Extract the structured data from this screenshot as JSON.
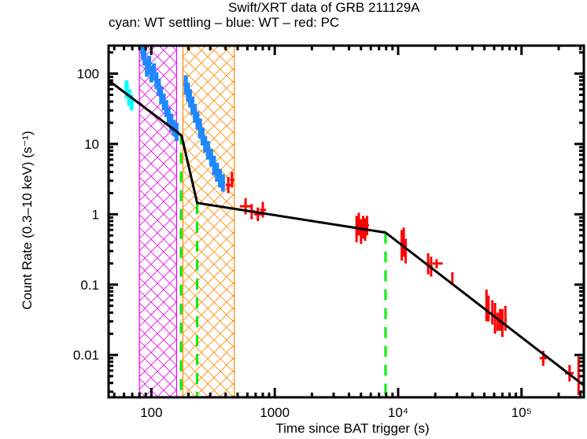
{
  "chart_data": {
    "type": "scatter",
    "title": "Swift/XRT data of GRB 211129A",
    "subtitle": "cyan: WT settling – blue: WT – red: PC",
    "xlabel": "Time since BAT trigger (s)",
    "ylabel": "Count Rate (0.3–10 keV) (s⁻¹)",
    "xscale": "log",
    "yscale": "log",
    "xlim": [
      45,
      320000
    ],
    "ylim": [
      0.0025,
      250
    ],
    "grid": false,
    "legend": "none",
    "x_ticks": [
      {
        "value": 100,
        "label": "100"
      },
      {
        "value": 1000,
        "label": "1000"
      },
      {
        "value": 10000,
        "label": "10⁴"
      },
      {
        "value": 100000,
        "label": "10⁵"
      }
    ],
    "y_ticks": [
      {
        "value": 100,
        "label": "100"
      },
      {
        "value": 10,
        "label": "10"
      },
      {
        "value": 1,
        "label": "1"
      },
      {
        "value": 0.1,
        "label": "0.1"
      },
      {
        "value": 0.01,
        "label": "0.01"
      }
    ],
    "colors": {
      "wt_settling": "#00ffff",
      "wt": "#1e88ff",
      "pc": "#ff0000",
      "model": "#000000",
      "break": "#00ee00",
      "flare1": "#ee00ee",
      "flare2": "#ff8800"
    },
    "shaded_regions": [
      {
        "name": "flare-1",
        "x_start": 80,
        "x_end": 160,
        "color": "#ee00ee",
        "pattern": "crosshatch"
      },
      {
        "name": "flare-2",
        "x_start": 180,
        "x_end": 470,
        "color": "#ff8800",
        "pattern": "crosshatch"
      }
    ],
    "break_lines": [
      {
        "x": 174,
        "y_top": 14
      },
      {
        "x": 235,
        "y_top": 1.45
      },
      {
        "x": 7900,
        "y_top": 0.55
      }
    ],
    "model_curve": {
      "x": [
        45,
        160,
        176,
        235,
        7900,
        320000
      ],
      "y": [
        80,
        15,
        13,
        1.45,
        0.55,
        0.0037
      ]
    },
    "series": [
      {
        "name": "WT settling",
        "color": "#00ffff",
        "points": [
          {
            "x": 63,
            "y": 65,
            "ylo": 45,
            "yhi": 80
          },
          {
            "x": 66,
            "y": 48,
            "ylo": 35,
            "yhi": 60
          },
          {
            "x": 69,
            "y": 40,
            "ylo": 30,
            "yhi": 50
          }
        ]
      },
      {
        "name": "WT",
        "color": "#1e88ff",
        "points": [
          {
            "x": 85,
            "y": 200,
            "ylo": 160,
            "yhi": 250
          },
          {
            "x": 88,
            "y": 170,
            "ylo": 130,
            "yhi": 220
          },
          {
            "x": 92,
            "y": 120,
            "ylo": 90,
            "yhi": 160
          },
          {
            "x": 96,
            "y": 140,
            "ylo": 100,
            "yhi": 180
          },
          {
            "x": 100,
            "y": 100,
            "ylo": 75,
            "yhi": 130
          },
          {
            "x": 105,
            "y": 110,
            "ylo": 80,
            "yhi": 140
          },
          {
            "x": 110,
            "y": 80,
            "ylo": 60,
            "yhi": 105
          },
          {
            "x": 115,
            "y": 65,
            "ylo": 48,
            "yhi": 85
          },
          {
            "x": 120,
            "y": 50,
            "ylo": 37,
            "yhi": 65
          },
          {
            "x": 126,
            "y": 40,
            "ylo": 30,
            "yhi": 52
          },
          {
            "x": 132,
            "y": 32,
            "ylo": 24,
            "yhi": 42
          },
          {
            "x": 138,
            "y": 25,
            "ylo": 18,
            "yhi": 33
          },
          {
            "x": 145,
            "y": 20,
            "ylo": 15,
            "yhi": 27
          },
          {
            "x": 152,
            "y": 17,
            "ylo": 13,
            "yhi": 22
          },
          {
            "x": 160,
            "y": 15,
            "ylo": 11,
            "yhi": 20
          },
          {
            "x": 190,
            "y": 70,
            "ylo": 50,
            "yhi": 95
          },
          {
            "x": 198,
            "y": 55,
            "ylo": 40,
            "yhi": 75
          },
          {
            "x": 206,
            "y": 45,
            "ylo": 33,
            "yhi": 60
          },
          {
            "x": 215,
            "y": 35,
            "ylo": 26,
            "yhi": 47
          },
          {
            "x": 225,
            "y": 28,
            "ylo": 20,
            "yhi": 37
          },
          {
            "x": 236,
            "y": 22,
            "ylo": 16,
            "yhi": 29
          },
          {
            "x": 248,
            "y": 17,
            "ylo": 12,
            "yhi": 23
          },
          {
            "x": 260,
            "y": 13,
            "ylo": 9.5,
            "yhi": 17
          },
          {
            "x": 273,
            "y": 10,
            "ylo": 7.5,
            "yhi": 13
          },
          {
            "x": 288,
            "y": 8,
            "ylo": 6,
            "yhi": 11
          },
          {
            "x": 305,
            "y": 6.5,
            "ylo": 4.8,
            "yhi": 8.5
          },
          {
            "x": 322,
            "y": 5,
            "ylo": 3.6,
            "yhi": 6.8
          },
          {
            "x": 340,
            "y": 4,
            "ylo": 2.9,
            "yhi": 5.4
          },
          {
            "x": 360,
            "y": 3.3,
            "ylo": 2.4,
            "yhi": 4.4
          },
          {
            "x": 380,
            "y": 2.8,
            "ylo": 2.1,
            "yhi": 3.7
          }
        ]
      },
      {
        "name": "PC",
        "color": "#ff0000",
        "points": [
          {
            "x": 420,
            "y": 2.6,
            "xlo": 400,
            "xhi": 440,
            "ylo": 2.0,
            "yhi": 3.4
          },
          {
            "x": 450,
            "y": 3.1,
            "xlo": 435,
            "xhi": 470,
            "ylo": 2.4,
            "yhi": 4.0
          },
          {
            "x": 580,
            "y": 1.3,
            "xlo": 520,
            "xhi": 640,
            "ylo": 1.0,
            "yhi": 1.7
          },
          {
            "x": 650,
            "y": 1.1,
            "xlo": 620,
            "xhi": 690,
            "ylo": 0.85,
            "yhi": 1.4
          },
          {
            "x": 730,
            "y": 1.0,
            "xlo": 680,
            "xhi": 790,
            "ylo": 0.8,
            "yhi": 1.25
          },
          {
            "x": 800,
            "y": 1.15,
            "xlo": 760,
            "xhi": 850,
            "ylo": 0.9,
            "yhi": 1.5
          },
          {
            "x": 4600,
            "y": 0.6,
            "xlo": 4500,
            "xhi": 4700,
            "ylo": 0.4,
            "yhi": 0.95
          },
          {
            "x": 4800,
            "y": 0.7,
            "xlo": 4700,
            "xhi": 4900,
            "ylo": 0.5,
            "yhi": 1.05
          },
          {
            "x": 5000,
            "y": 0.55,
            "xlo": 4900,
            "xhi": 5100,
            "ylo": 0.38,
            "yhi": 0.85
          },
          {
            "x": 5200,
            "y": 0.65,
            "xlo": 5100,
            "xhi": 5300,
            "ylo": 0.45,
            "yhi": 0.95
          },
          {
            "x": 5400,
            "y": 0.6,
            "xlo": 5300,
            "xhi": 5500,
            "ylo": 0.42,
            "yhi": 0.88
          },
          {
            "x": 5600,
            "y": 0.7,
            "xlo": 5500,
            "xhi": 5800,
            "ylo": 0.5,
            "yhi": 0.95
          },
          {
            "x": 10700,
            "y": 0.35,
            "xlo": 10500,
            "xhi": 10900,
            "ylo": 0.22,
            "yhi": 0.6
          },
          {
            "x": 11100,
            "y": 0.4,
            "xlo": 10900,
            "xhi": 11300,
            "ylo": 0.25,
            "yhi": 0.65
          },
          {
            "x": 11500,
            "y": 0.3,
            "xlo": 11300,
            "xhi": 11700,
            "ylo": 0.2,
            "yhi": 0.45
          },
          {
            "x": 17500,
            "y": 0.2,
            "xlo": 17000,
            "xhi": 18000,
            "ylo": 0.14,
            "yhi": 0.28
          },
          {
            "x": 18500,
            "y": 0.18,
            "xlo": 18000,
            "xhi": 19000,
            "ylo": 0.13,
            "yhi": 0.25
          },
          {
            "x": 20500,
            "y": 0.2,
            "xlo": 19000,
            "xhi": 23000,
            "ylo": 0.17,
            "yhi": 0.23
          },
          {
            "x": 27500,
            "y": 0.12,
            "xlo": 27000,
            "xhi": 28000,
            "ylo": 0.1,
            "yhi": 0.15
          },
          {
            "x": 52000,
            "y": 0.05,
            "xlo": 51000,
            "xhi": 53000,
            "ylo": 0.03,
            "yhi": 0.085
          },
          {
            "x": 54000,
            "y": 0.045,
            "xlo": 53000,
            "xhi": 55000,
            "ylo": 0.03,
            "yhi": 0.07
          },
          {
            "x": 58000,
            "y": 0.04,
            "xlo": 57000,
            "xhi": 59000,
            "ylo": 0.027,
            "yhi": 0.06
          },
          {
            "x": 61000,
            "y": 0.035,
            "xlo": 60000,
            "xhi": 62000,
            "ylo": 0.02,
            "yhi": 0.055
          },
          {
            "x": 64000,
            "y": 0.03,
            "xlo": 63000,
            "xhi": 65000,
            "ylo": 0.022,
            "yhi": 0.04
          },
          {
            "x": 67000,
            "y": 0.035,
            "xlo": 66000,
            "xhi": 68000,
            "ylo": 0.022,
            "yhi": 0.045
          },
          {
            "x": 70000,
            "y": 0.03,
            "xlo": 69000,
            "xhi": 71000,
            "ylo": 0.018,
            "yhi": 0.045
          },
          {
            "x": 74000,
            "y": 0.032,
            "xlo": 73000,
            "xhi": 76000,
            "ylo": 0.022,
            "yhi": 0.05
          },
          {
            "x": 150000,
            "y": 0.009,
            "xlo": 140000,
            "xhi": 160000,
            "ylo": 0.007,
            "yhi": 0.0115
          },
          {
            "x": 245000,
            "y": 0.0055,
            "xlo": 225000,
            "xhi": 265000,
            "ylo": 0.0042,
            "yhi": 0.0072
          },
          {
            "x": 290000,
            "y": 0.0045,
            "xlo": 285000,
            "xhi": 295000,
            "ylo": 0.0027,
            "yhi": 0.0095
          }
        ]
      }
    ]
  }
}
